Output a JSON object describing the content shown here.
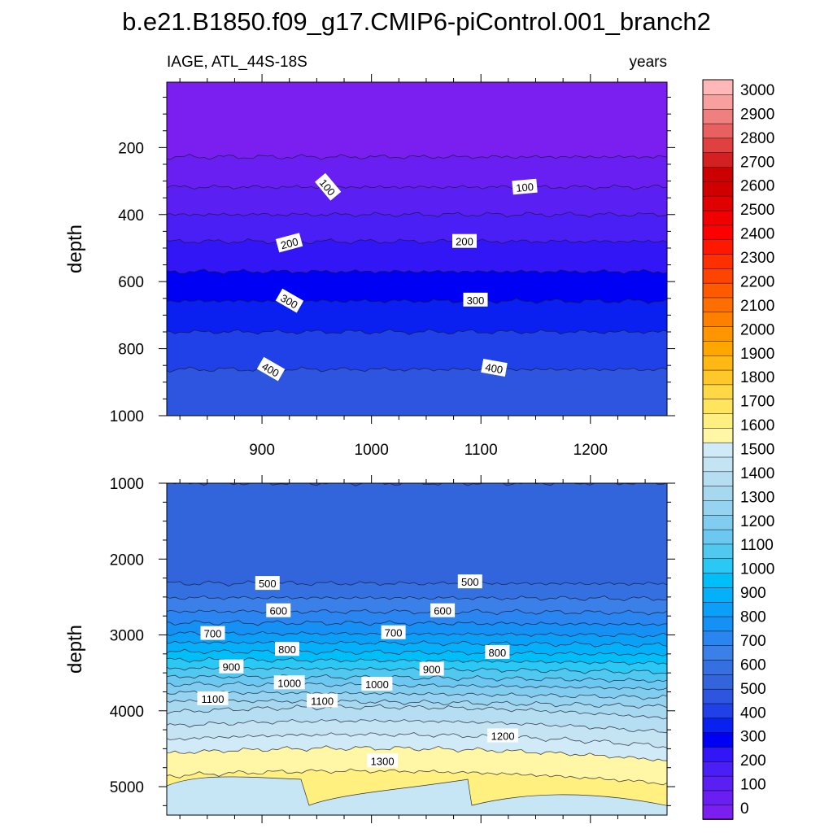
{
  "chart_data": {
    "title": "b.e21.B1850.f09_g17.CMIP6-piControl.001_branch2",
    "units": "years",
    "type": "contour",
    "panels": [
      {
        "name": "upper",
        "subtitle_left": "IAGE, ATL_44S-18S",
        "subtitle_right": "years",
        "xlabel": "",
        "ylabel": "depth",
        "xlim": [
          813,
          1270
        ],
        "ylim": [
          5,
          1000
        ],
        "x_ticks": [
          900,
          1000,
          1100,
          1200
        ],
        "x_tick_labels": [
          "900",
          "1000",
          "1100",
          "1200"
        ],
        "y_ticks": [
          200,
          400,
          600,
          800,
          1000
        ],
        "y_tick_labels": [
          "200",
          "400",
          "600",
          "800",
          "1000"
        ],
        "contour_depths": [
          {
            "level": 50,
            "depth": 228
          },
          {
            "level": 100,
            "depth": 318
          },
          {
            "level": 150,
            "depth": 400
          },
          {
            "level": 200,
            "depth": 480
          },
          {
            "level": 250,
            "depth": 570
          },
          {
            "level": 300,
            "depth": 658
          },
          {
            "level": 350,
            "depth": 750
          },
          {
            "level": 400,
            "depth": 862
          }
        ],
        "contour_labels": [
          {
            "text": "100",
            "x": 960,
            "depth": 318,
            "angle": 50
          },
          {
            "text": "100",
            "x": 1140,
            "depth": 318,
            "angle": -5
          },
          {
            "text": "200",
            "x": 925,
            "depth": 485,
            "angle": -15
          },
          {
            "text": "200",
            "x": 1085,
            "depth": 480,
            "angle": 0
          },
          {
            "text": "300",
            "x": 925,
            "depth": 658,
            "angle": 30
          },
          {
            "text": "300",
            "x": 1095,
            "depth": 655,
            "angle": 0
          },
          {
            "text": "400",
            "x": 908,
            "depth": 862,
            "angle": 30
          },
          {
            "text": "400",
            "x": 1112,
            "depth": 858,
            "angle": 10
          }
        ]
      },
      {
        "name": "lower",
        "xlabel": "",
        "ylabel": "depth",
        "xlim": [
          813,
          1270
        ],
        "ylim": [
          1000,
          5375
        ],
        "x_ticks": [
          900,
          1000,
          1100,
          1200
        ],
        "y_ticks": [
          1000,
          2000,
          3000,
          4000,
          5000
        ],
        "y_tick_labels": [
          "1000",
          "2000",
          "3000",
          "4000",
          "5000"
        ],
        "contour_depths": [
          {
            "level": 450,
            "depth": 1000
          },
          {
            "level": 500,
            "depth": 2320
          },
          {
            "level": 550,
            "depth": 2510
          },
          {
            "level": 600,
            "depth": 2690
          },
          {
            "level": 650,
            "depth": 2840
          },
          {
            "level": 700,
            "depth": 2980
          },
          {
            "level": 750,
            "depth": 3100
          },
          {
            "level": 800,
            "depth": 3220
          },
          {
            "level": 850,
            "depth": 3330
          },
          {
            "level": 900,
            "depth": 3440
          },
          {
            "level": 950,
            "depth": 3550
          },
          {
            "level": 1000,
            "depth": 3650
          },
          {
            "level": 1050,
            "depth": 3760
          },
          {
            "level": 1100,
            "depth": 3870
          },
          {
            "level": 1150,
            "depth": 4020
          },
          {
            "level": 1200,
            "depth": 4200
          },
          {
            "level": 1250,
            "depth": 4380
          },
          {
            "level": 1300,
            "depth": 4560
          },
          {
            "level": 1350,
            "depth": 4860
          }
        ],
        "contour_labels": [
          {
            "text": "500",
            "x": 905,
            "depth": 2320,
            "angle": 0
          },
          {
            "text": "500",
            "x": 1090,
            "depth": 2300,
            "angle": 0
          },
          {
            "text": "600",
            "x": 915,
            "depth": 2680,
            "angle": 0
          },
          {
            "text": "600",
            "x": 1065,
            "depth": 2680,
            "angle": 0
          },
          {
            "text": "700",
            "x": 855,
            "depth": 2980,
            "angle": 0
          },
          {
            "text": "700",
            "x": 1020,
            "depth": 2970,
            "angle": 0
          },
          {
            "text": "800",
            "x": 923,
            "depth": 3190,
            "angle": 0
          },
          {
            "text": "800",
            "x": 1115,
            "depth": 3230,
            "angle": 0
          },
          {
            "text": "900",
            "x": 872,
            "depth": 3420,
            "angle": 0
          },
          {
            "text": "900",
            "x": 1055,
            "depth": 3450,
            "angle": 0
          },
          {
            "text": "1000",
            "x": 925,
            "depth": 3630,
            "angle": 0
          },
          {
            "text": "1000",
            "x": 1005,
            "depth": 3650,
            "angle": 0
          },
          {
            "text": "1100",
            "x": 855,
            "depth": 3840,
            "angle": 0
          },
          {
            "text": "1100",
            "x": 955,
            "depth": 3870,
            "angle": 0
          },
          {
            "text": "1200",
            "x": 1120,
            "depth": 4330,
            "angle": 0
          },
          {
            "text": "1300",
            "x": 1010,
            "depth": 4660,
            "angle": 0
          }
        ]
      }
    ],
    "colorbar": {
      "labels": [
        "3000",
        "2900",
        "2800",
        "2700",
        "2600",
        "2500",
        "2400",
        "2300",
        "2200",
        "2100",
        "2000",
        "1900",
        "1800",
        "1700",
        "1600",
        "1500",
        "1400",
        "1300",
        "1200",
        "1100",
        "1000",
        "900",
        "800",
        "700",
        "600",
        "500",
        "400",
        "300",
        "200",
        "100",
        "0"
      ],
      "levels": [
        0,
        50,
        100,
        150,
        200,
        250,
        300,
        350,
        400,
        450,
        500,
        550,
        600,
        650,
        700,
        750,
        800,
        850,
        900,
        950,
        1000,
        1050,
        1100,
        1150,
        1200,
        1250,
        1300,
        1350,
        1400,
        1450,
        1500,
        1550,
        1600,
        1650,
        1700,
        1750,
        1800,
        1850,
        1900,
        1950,
        2000,
        2050,
        2100,
        2150,
        2200,
        2250,
        2300,
        2350,
        2400,
        2450,
        2500,
        2550,
        2600,
        2650,
        2700,
        2750,
        2800,
        2850,
        2900,
        2950,
        3000
      ],
      "colors": [
        "#7a1ff0",
        "#6a1ff2",
        "#5a1ff2",
        "#4a1ff5",
        "#3316f5",
        "#0000f5",
        "#0a20f0",
        "#2040e8",
        "#2d55e0",
        "#3264dc",
        "#3570e0",
        "#3a80e8",
        "#2a85f0",
        "#1590f5",
        "#0aa0f8",
        "#05b0fb",
        "#00bef8",
        "#2ac8f5",
        "#50c8f0",
        "#6cc8f0",
        "#80cdf0",
        "#95d3f0",
        "#a6d8f0",
        "#b6def2",
        "#c4e4f4",
        "#d0ebf7",
        "#fff6a6",
        "#fff080",
        "#ffe55e",
        "#ffd845",
        "#ffc82a",
        "#ffb814",
        "#ffa600",
        "#ff9500",
        "#ff8000",
        "#ff6e00",
        "#ff5a00",
        "#ff4400",
        "#ff3000",
        "#ff1800",
        "#ff0000",
        "#f00000",
        "#e00000",
        "#d00000",
        "#cc0000",
        "#d42020",
        "#e04040",
        "#e86060",
        "#f08080",
        "#f8a0a0",
        "#ffb8b8"
      ]
    }
  }
}
